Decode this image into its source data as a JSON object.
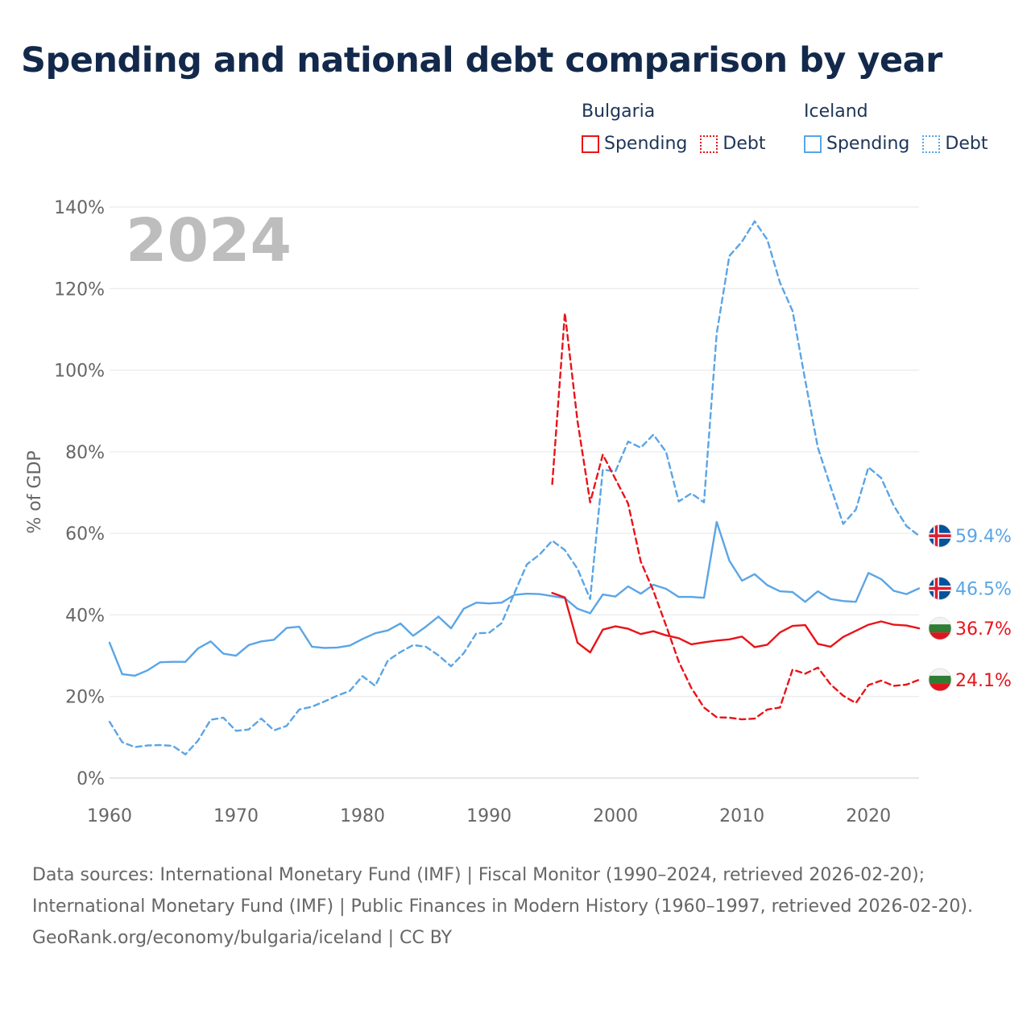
{
  "page": {
    "title": "Spending and national debt comparison by year",
    "source_note": "Data sources: International Monetary Fund (IMF) | Fiscal Monitor (1990–2024, retrieved 2026-02-20); International Monetary Fund (IMF) | Public Finances in Modern History (1960–1997, retrieved 2026-02-20).",
    "credit": "GeoRank.org/economy/bulgaria/iceland | CC BY"
  },
  "legend": {
    "groups": [
      {
        "name": "Bulgaria",
        "color": "#e8141a",
        "items": [
          {
            "label": "Spending",
            "style": "solid"
          },
          {
            "label": "Debt",
            "style": "dotted"
          }
        ]
      },
      {
        "name": "Iceland",
        "color": "#5aa5e6",
        "items": [
          {
            "label": "Spending",
            "style": "solid"
          },
          {
            "label": "Debt",
            "style": "dotted"
          }
        ]
      }
    ]
  },
  "colors": {
    "bulgaria": "#e8141a",
    "iceland": "#5aa5e6",
    "text": "#13294b",
    "axis": "#666666",
    "grid": "#e6e6e6",
    "year_watermark": "#bdbdbd"
  },
  "chart_data": {
    "type": "line",
    "title": "Spending and national debt comparison by year",
    "year_label": "2024",
    "xlabel": "",
    "ylabel": "% of GDP",
    "xlim": [
      1960,
      2024
    ],
    "ylim": [
      0,
      140
    ],
    "x_ticks": [
      1960,
      1970,
      1980,
      1990,
      2000,
      2010,
      2020
    ],
    "y_ticks": [
      0,
      20,
      40,
      60,
      80,
      100,
      120,
      140
    ],
    "y_tick_labels": [
      "0%",
      "20%",
      "40%",
      "60%",
      "80%",
      "100%",
      "120%",
      "140%"
    ],
    "grid": true,
    "series": [
      {
        "name": "Iceland Debt",
        "country": "Iceland",
        "flag": "iceland",
        "metric": "Debt",
        "color": "#5aa5e6",
        "dashed": true,
        "start": 1960,
        "end_label": "59.4%",
        "values": [
          13.8,
          8.8,
          7.6,
          8.0,
          8.1,
          7.9,
          5.8,
          9.2,
          14.3,
          14.8,
          11.6,
          11.9,
          14.6,
          11.7,
          12.8,
          16.8,
          17.5,
          18.8,
          20.2,
          21.4,
          25.0,
          22.6,
          28.8,
          30.9,
          32.6,
          32.2,
          30.1,
          27.4,
          30.6,
          35.5,
          35.6,
          38.0,
          45.3,
          52.4,
          54.8,
          58.2,
          55.9,
          51.3,
          43.9,
          75.6,
          75.2,
          82.5,
          81.0,
          84.2,
          80.0,
          67.8,
          69.8,
          67.6,
          109.0,
          128.0,
          131.5,
          136.5,
          132.0,
          121.5,
          114.5,
          97.5,
          81.0,
          71.5,
          62.3,
          65.8,
          76.2,
          73.6,
          66.8,
          61.8,
          59.4
        ]
      },
      {
        "name": "Iceland Spending",
        "country": "Iceland",
        "flag": "iceland",
        "metric": "Spending",
        "color": "#5aa5e6",
        "dashed": false,
        "start": 1960,
        "end_label": "46.5%",
        "values": [
          33.2,
          25.5,
          25.1,
          26.4,
          28.4,
          28.5,
          28.5,
          31.8,
          33.5,
          30.5,
          30.0,
          32.6,
          33.5,
          33.9,
          36.8,
          37.1,
          32.2,
          31.9,
          32.0,
          32.5,
          34.1,
          35.5,
          36.2,
          37.9,
          34.9,
          37.1,
          39.6,
          36.7,
          41.5,
          43.0,
          42.8,
          43.0,
          44.9,
          45.2,
          45.1,
          44.6,
          44.1,
          41.5,
          40.4,
          45.0,
          44.5,
          47.0,
          45.2,
          47.4,
          46.4,
          44.4,
          44.4,
          44.2,
          62.8,
          53.3,
          48.4,
          50.0,
          47.3,
          45.8,
          45.6,
          43.2,
          45.8,
          43.9,
          43.4,
          43.2,
          50.3,
          48.8,
          45.9,
          45.1,
          46.5
        ]
      },
      {
        "name": "Bulgaria Spending",
        "country": "Bulgaria",
        "flag": "bulgaria",
        "metric": "Spending",
        "color": "#e8141a",
        "dashed": false,
        "start": 1995,
        "end_label": "36.7%",
        "values": [
          45.4,
          44.3,
          33.2,
          30.8,
          36.4,
          37.2,
          36.6,
          35.3,
          36.0,
          35.0,
          34.3,
          32.8,
          33.3,
          33.7,
          34.0,
          34.7,
          32.1,
          32.7,
          35.7,
          37.3,
          37.5,
          32.9,
          32.2,
          34.6,
          36.1,
          37.6,
          38.4,
          37.6,
          37.4,
          36.7
        ]
      },
      {
        "name": "Bulgaria Debt",
        "country": "Bulgaria",
        "flag": "bulgaria",
        "metric": "Debt",
        "color": "#e8141a",
        "dashed": true,
        "start": 1995,
        "end_label": "24.1%",
        "values": [
          72.1,
          114.0,
          87.5,
          67.6,
          79.3,
          73.3,
          67.3,
          53.1,
          45.9,
          37.4,
          28.6,
          22.1,
          17.3,
          14.9,
          14.8,
          14.4,
          14.6,
          16.8,
          17.3,
          26.6,
          25.6,
          27.1,
          23.0,
          20.2,
          18.4,
          22.8,
          23.9,
          22.6,
          22.9,
          24.1
        ]
      }
    ]
  }
}
